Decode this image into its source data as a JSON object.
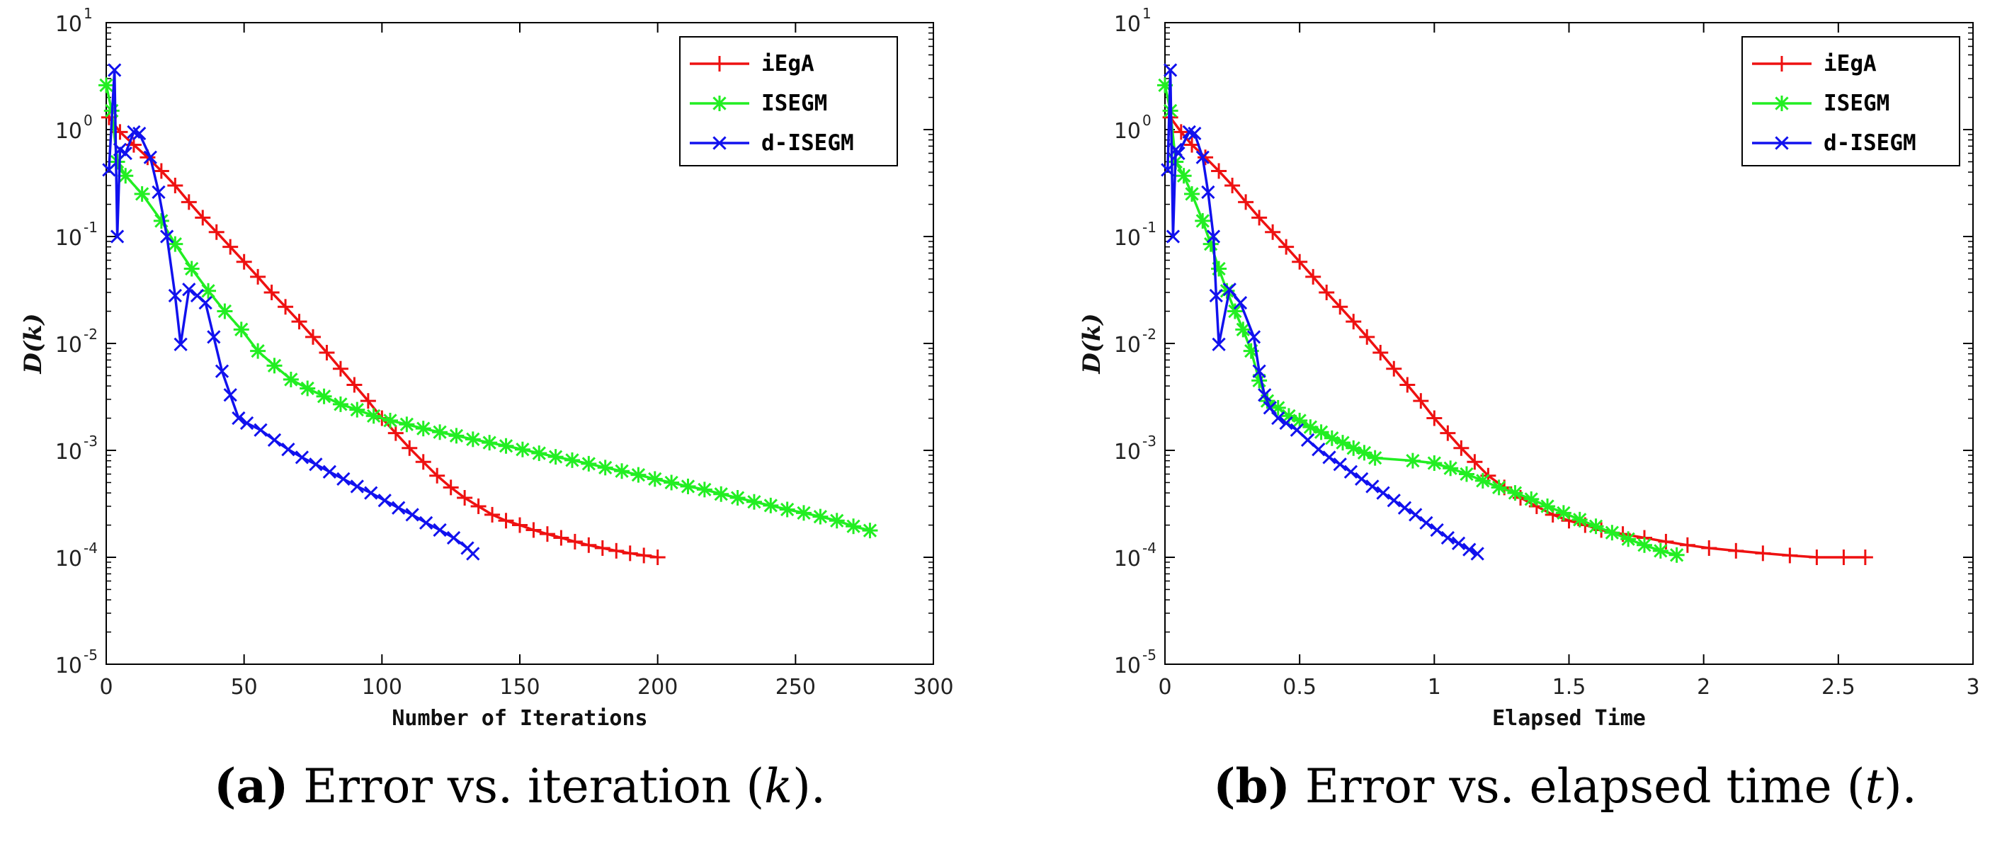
{
  "chart_data": [
    {
      "type": "line",
      "panel": "a",
      "xlabel": "Number of Iterations",
      "ylabel": "D(k)",
      "yscale": "log",
      "xlim": [
        0,
        300
      ],
      "ylim": [
        1e-05,
        10
      ],
      "xticks": [
        "0",
        "50",
        "100",
        "150",
        "200",
        "250",
        "300"
      ],
      "yticks": [
        {
          "base": "10",
          "exp": "-5"
        },
        {
          "base": "10",
          "exp": "-4"
        },
        {
          "base": "10",
          "exp": "-3"
        },
        {
          "base": "10",
          "exp": "-2"
        },
        {
          "base": "10",
          "exp": "-1"
        },
        {
          "base": "10",
          "exp": "0"
        },
        {
          "base": "10",
          "exp": "1"
        }
      ],
      "legend_position": "top-right",
      "caption": {
        "tag": "(a)",
        "text": " Error vs. iteration (",
        "var": "k",
        "end": ")."
      },
      "series": [
        {
          "name": "iEgA",
          "color": "#ee1111",
          "marker": "plus",
          "x": [
            1,
            5,
            10,
            15,
            20,
            25,
            30,
            35,
            40,
            45,
            50,
            55,
            60,
            65,
            70,
            75,
            80,
            85,
            90,
            95,
            100,
            105,
            110,
            115,
            120,
            125,
            130,
            135,
            140,
            145,
            150,
            155,
            160,
            165,
            170,
            175,
            180,
            185,
            190,
            195,
            200
          ],
          "y": [
            1.3,
            0.95,
            0.72,
            0.55,
            0.41,
            0.3,
            0.21,
            0.15,
            0.11,
            0.08,
            0.058,
            0.042,
            0.03,
            0.022,
            0.016,
            0.0115,
            0.0082,
            0.0058,
            0.0041,
            0.0029,
            0.002,
            0.00145,
            0.00105,
            0.00078,
            0.00058,
            0.00045,
            0.00036,
            0.0003,
            0.00025,
            0.00022,
            0.0002,
            0.00018,
            0.000165,
            0.000152,
            0.00014,
            0.00013,
            0.000122,
            0.000115,
            0.000109,
            0.000104,
            0.0001
          ],
          "marker_every": 1
        },
        {
          "name": "ISEGM",
          "color": "#22ee22",
          "marker": "asterisk",
          "x": [
            0,
            2,
            4,
            7,
            13,
            20,
            25,
            31,
            37,
            43,
            49,
            55,
            61,
            67,
            73,
            79,
            85,
            91,
            97,
            103,
            109,
            115,
            121,
            127,
            133,
            139,
            145,
            151,
            157,
            163,
            169,
            175,
            181,
            187,
            193,
            199,
            205,
            211,
            217,
            223,
            229,
            235,
            241,
            247,
            253,
            259,
            265,
            271,
            277
          ],
          "y": [
            2.6,
            1.5,
            0.5,
            0.37,
            0.25,
            0.14,
            0.085,
            0.05,
            0.031,
            0.02,
            0.0135,
            0.0085,
            0.0062,
            0.0046,
            0.0038,
            0.0032,
            0.0027,
            0.0024,
            0.0021,
            0.0019,
            0.00175,
            0.0016,
            0.00148,
            0.00137,
            0.00127,
            0.00118,
            0.0011,
            0.00102,
            0.00094,
            0.00087,
            0.00081,
            0.00075,
            0.00069,
            0.00064,
            0.00059,
            0.00054,
            0.0005,
            0.00046,
            0.00043,
            0.00039,
            0.00036,
            0.00033,
            0.000305,
            0.00028,
            0.00026,
            0.00024,
            0.00022,
            0.000195,
            0.000178
          ],
          "marker_every": 1
        },
        {
          "name": "d-ISEGM",
          "color": "#1111ee",
          "marker": "x",
          "x": [
            1,
            3,
            4,
            5,
            7,
            10,
            12,
            16,
            19,
            22,
            25,
            27,
            30,
            33,
            36,
            39,
            42,
            45,
            48,
            51,
            56,
            61,
            66,
            71,
            76,
            81,
            86,
            91,
            96,
            101,
            106,
            111,
            116,
            121,
            126,
            131,
            133
          ],
          "y": [
            0.42,
            3.6,
            0.1,
            0.65,
            0.6,
            0.95,
            0.92,
            0.55,
            0.26,
            0.1,
            0.028,
            0.0098,
            0.032,
            0.028,
            0.024,
            0.0115,
            0.0055,
            0.0033,
            0.002,
            0.0018,
            0.00155,
            0.00125,
            0.00102,
            0.00086,
            0.00074,
            0.00063,
            0.00054,
            0.00046,
            0.0004,
            0.00034,
            0.00029,
            0.00025,
            0.00021,
            0.00018,
            0.000152,
            0.000122,
            0.000108
          ],
          "marker_every": 1
        }
      ]
    },
    {
      "type": "line",
      "panel": "b",
      "xlabel": "Elapsed Time",
      "ylabel": "D(k)",
      "yscale": "log",
      "xlim": [
        0,
        3
      ],
      "ylim": [
        1e-05,
        10
      ],
      "xticks": [
        "0",
        "0.5",
        "1",
        "1.5",
        "2",
        "2.5",
        "3"
      ],
      "yticks": [
        {
          "base": "10",
          "exp": "-5"
        },
        {
          "base": "10",
          "exp": "-4"
        },
        {
          "base": "10",
          "exp": "-3"
        },
        {
          "base": "10",
          "exp": "-2"
        },
        {
          "base": "10",
          "exp": "-1"
        },
        {
          "base": "10",
          "exp": "0"
        },
        {
          "base": "10",
          "exp": "1"
        }
      ],
      "legend_position": "top-right",
      "caption": {
        "tag": "(b)",
        "text": " Error vs. elapsed time (",
        "var": "t",
        "end": ")."
      },
      "series": [
        {
          "name": "iEgA",
          "color": "#ee1111",
          "marker": "plus",
          "x": [
            0.02,
            0.06,
            0.1,
            0.15,
            0.2,
            0.25,
            0.3,
            0.35,
            0.4,
            0.45,
            0.5,
            0.55,
            0.6,
            0.65,
            0.7,
            0.75,
            0.8,
            0.85,
            0.9,
            0.95,
            1.0,
            1.05,
            1.1,
            1.15,
            1.2,
            1.26,
            1.32,
            1.38,
            1.44,
            1.5,
            1.56,
            1.62,
            1.7,
            1.78,
            1.86,
            1.94,
            2.02,
            2.12,
            2.22,
            2.32,
            2.42,
            2.52,
            2.6
          ],
          "y": [
            1.3,
            0.95,
            0.72,
            0.55,
            0.41,
            0.3,
            0.21,
            0.15,
            0.11,
            0.08,
            0.058,
            0.042,
            0.03,
            0.022,
            0.016,
            0.0115,
            0.0082,
            0.0058,
            0.0041,
            0.0029,
            0.002,
            0.00145,
            0.00105,
            0.00078,
            0.00058,
            0.00045,
            0.00036,
            0.0003,
            0.00025,
            0.00022,
            0.0002,
            0.00018,
            0.000165,
            0.000152,
            0.00014,
            0.00013,
            0.000122,
            0.000115,
            0.000109,
            0.000104,
            0.0001,
            0.0001,
            0.0001
          ],
          "marker_every": 1
        },
        {
          "name": "ISEGM",
          "color": "#22ee22",
          "marker": "asterisk",
          "x": [
            0.0,
            0.02,
            0.04,
            0.07,
            0.1,
            0.14,
            0.17,
            0.2,
            0.23,
            0.26,
            0.29,
            0.32,
            0.35,
            0.38,
            0.42,
            0.46,
            0.5,
            0.54,
            0.58,
            0.62,
            0.66,
            0.7,
            0.74,
            0.78,
            0.92,
            1.0,
            1.06,
            1.12,
            1.18,
            1.24,
            1.3,
            1.36,
            1.42,
            1.48,
            1.54,
            1.6,
            1.66,
            1.72,
            1.78,
            1.84,
            1.9
          ],
          "y": [
            2.6,
            1.5,
            0.5,
            0.37,
            0.25,
            0.14,
            0.085,
            0.05,
            0.031,
            0.02,
            0.0135,
            0.0085,
            0.0045,
            0.0029,
            0.0025,
            0.0021,
            0.0019,
            0.00165,
            0.00148,
            0.0013,
            0.00118,
            0.00105,
            0.00095,
            0.00085,
            0.0008,
            0.00076,
            0.00068,
            0.0006,
            0.00052,
            0.00045,
            0.0004,
            0.00035,
            0.0003,
            0.00026,
            0.000225,
            0.000195,
            0.00017,
            0.000148,
            0.00013,
            0.000115,
            0.000105
          ],
          "marker_every": 1
        },
        {
          "name": "d-ISEGM",
          "color": "#1111ee",
          "marker": "x",
          "x": [
            0.01,
            0.02,
            0.03,
            0.04,
            0.05,
            0.09,
            0.11,
            0.14,
            0.16,
            0.18,
            0.19,
            0.2,
            0.24,
            0.28,
            0.33,
            0.35,
            0.37,
            0.39,
            0.42,
            0.45,
            0.49,
            0.53,
            0.57,
            0.61,
            0.65,
            0.69,
            0.73,
            0.77,
            0.81,
            0.85,
            0.89,
            0.93,
            0.97,
            1.01,
            1.05,
            1.09,
            1.13,
            1.16
          ],
          "y": [
            0.42,
            3.6,
            0.1,
            0.65,
            0.6,
            0.95,
            0.92,
            0.55,
            0.26,
            0.1,
            0.028,
            0.0098,
            0.032,
            0.024,
            0.0115,
            0.0055,
            0.0033,
            0.0025,
            0.002,
            0.0018,
            0.00155,
            0.00125,
            0.00102,
            0.00086,
            0.00074,
            0.00063,
            0.00054,
            0.00046,
            0.0004,
            0.00034,
            0.00029,
            0.00025,
            0.00021,
            0.00018,
            0.000152,
            0.000135,
            0.000118,
            0.000108
          ],
          "marker_every": 1
        }
      ]
    }
  ]
}
